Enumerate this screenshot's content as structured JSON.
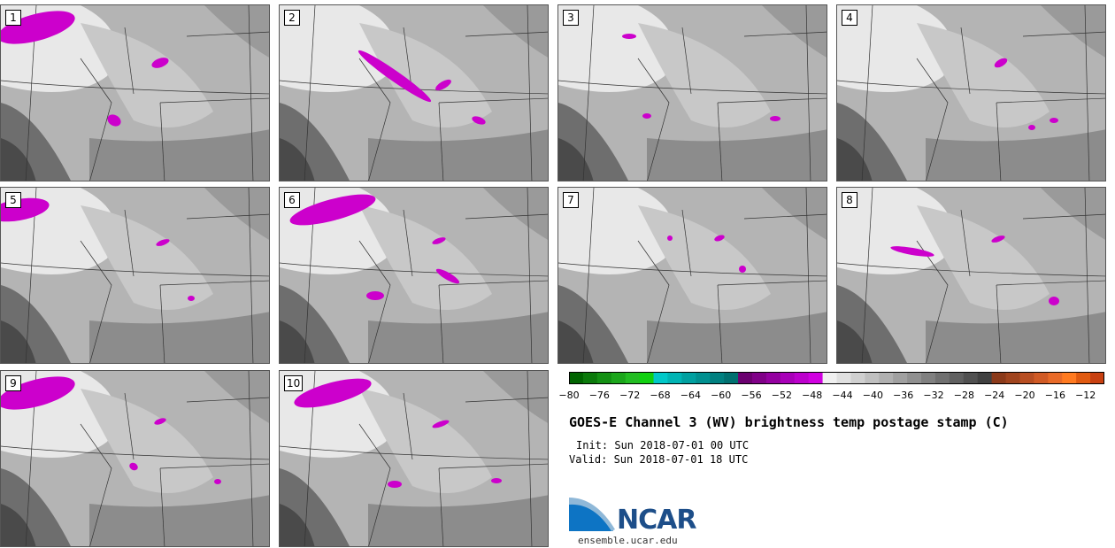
{
  "panels": [
    {
      "label": "1"
    },
    {
      "label": "2"
    },
    {
      "label": "3"
    },
    {
      "label": "4"
    },
    {
      "label": "5"
    },
    {
      "label": "6"
    },
    {
      "label": "7"
    },
    {
      "label": "8"
    },
    {
      "label": "9"
    },
    {
      "label": "10"
    }
  ],
  "colorbar": {
    "ticks": [
      "−80",
      "−76",
      "−72",
      "−68",
      "−64",
      "−60",
      "−56",
      "−52",
      "−48",
      "−44",
      "−40",
      "−36",
      "−32",
      "−28",
      "−24",
      "−20",
      "−16",
      "−12"
    ],
    "colors": [
      "#006400",
      "#0b7a0b",
      "#139013",
      "#1ba61b",
      "#22bc22",
      "#10d010",
      "#00c8c8",
      "#00b4b4",
      "#00a0a0",
      "#009090",
      "#008080",
      "#007070",
      "#6b0070",
      "#800088",
      "#9400a0",
      "#a800b8",
      "#bc00cc",
      "#d000e0",
      "#f0f0f0",
      "#e0e0e0",
      "#d0d0d0",
      "#c0c0c0",
      "#b0b0b0",
      "#a0a0a0",
      "#909090",
      "#808080",
      "#707070",
      "#606060",
      "#505050",
      "#404040",
      "#8b3a1a",
      "#a0441e",
      "#b84e22",
      "#d05a25",
      "#e86a28",
      "#ff7a20",
      "#e05a10",
      "#c84010"
    ]
  },
  "title": "GOES-E Channel 3 (WV) brightness temp postage stamp (C)",
  "init": "Init: Sun 2018-07-01 00 UTC",
  "valid": "Valid: Sun 2018-07-01 18 UTC",
  "logo_text": "NCAR",
  "site": "ensemble.ucar.edu"
}
